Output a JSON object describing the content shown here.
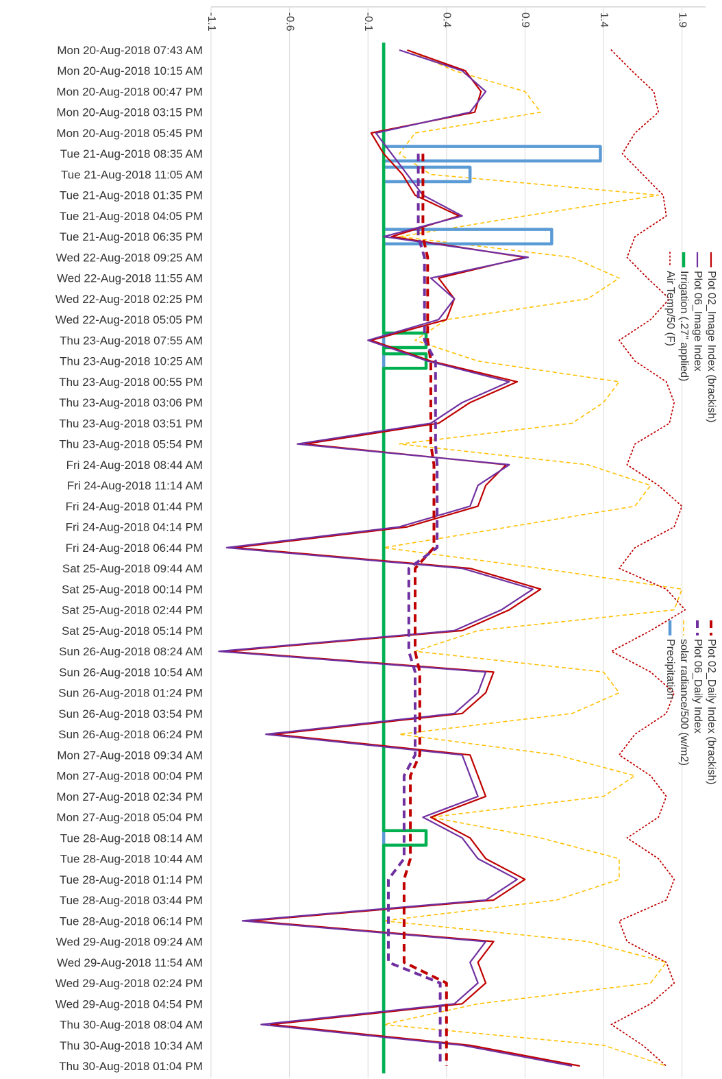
{
  "chart_data": {
    "type": "line",
    "title": "",
    "xlabel": "",
    "ylabel": "",
    "orientation": "rotated-90-clockwise",
    "value_axis": {
      "ticks": [
        -1.1,
        -0.6,
        -0.1,
        0.4,
        0.9,
        1.4,
        1.9
      ],
      "tick_labels": [
        "-1.1",
        "-0.6",
        "-0.1",
        "0.4",
        "0.9",
        "1.4",
        "1.9"
      ],
      "range": [
        -1.1,
        2.05
      ],
      "gridlines": true
    },
    "categories": [
      "Mon 20-Aug-2018 07:43 AM",
      "Mon 20-Aug-2018 10:15 AM",
      "Mon 20-Aug-2018 00:47 PM",
      "Mon 20-Aug-2018 03:15 PM",
      "Mon 20-Aug-2018 05:45 PM",
      "Tue 21-Aug-2018 08:35 AM",
      "Tue 21-Aug-2018 11:05 AM",
      "Tue 21-Aug-2018 01:35 PM",
      "Tue 21-Aug-2018 04:05 PM",
      "Tue 21-Aug-2018 06:35 PM",
      "Wed 22-Aug-2018 09:25 AM",
      "Wed 22-Aug-2018 11:55 AM",
      "Wed 22-Aug-2018 02:25 PM",
      "Wed 22-Aug-2018 05:05 PM",
      "Thu 23-Aug-2018 07:55 AM",
      "Thu 23-Aug-2018 10:25 AM",
      "Thu 23-Aug-2018 00:55 PM",
      "Thu 23-Aug-2018 03:06 PM",
      "Thu 23-Aug-2018 03:51 PM",
      "Thu 23-Aug-2018 05:54 PM",
      "Fri 24-Aug-2018 08:44 AM",
      "Fri 24-Aug-2018 11:14 AM",
      "Fri 24-Aug-2018 01:44 PM",
      "Fri 24-Aug-2018 04:14 PM",
      "Fri 24-Aug-2018 06:44 PM",
      "Sat 25-Aug-2018 09:44 AM",
      "Sat 25-Aug-2018 00:14 PM",
      "Sat 25-Aug-2018 02:44 PM",
      "Sat 25-Aug-2018 05:14 PM",
      "Sun 26-Aug-2018 08:24 AM",
      "Sun 26-Aug-2018 10:54 AM",
      "Sun 26-Aug-2018 01:24 PM",
      "Sun 26-Aug-2018 03:54 PM",
      "Sun 26-Aug-2018 06:24 PM",
      "Mon 27-Aug-2018 09:34 AM",
      "Mon 27-Aug-2018 00:04 PM",
      "Mon 27-Aug-2018 02:34 PM",
      "Mon 27-Aug-2018 05:04 PM",
      "Tue 28-Aug-2018 08:14 AM",
      "Tue 28-Aug-2018 10:44 AM",
      "Tue 28-Aug-2018 01:14 PM",
      "Tue 28-Aug-2018 03:44 PM",
      "Tue 28-Aug-2018 06:14 PM",
      "Wed 29-Aug-2018 09:24 AM",
      "Wed 29-Aug-2018 11:54 AM",
      "Wed 29-Aug-2018 02:24 PM",
      "Wed 29-Aug-2018 04:54 PM",
      "Thu 30-Aug-2018 08:04 AM",
      "Thu 30-Aug-2018 10:34 AM",
      "Thu 30-Aug-2018 01:04 PM"
    ],
    "legend": {
      "placement": "upper-right",
      "entries": [
        {
          "label": "Plot 02_Image Index (brackish)",
          "series": "p02"
        },
        {
          "label": "Plot 06_Image Index",
          "series": "p06"
        },
        {
          "label": "Irrigation (.27\" applied)",
          "series": "irr"
        },
        {
          "label": "Air Temp/50  (F)",
          "series": "air"
        },
        {
          "label": "Plot 02_Daily Index (brackish)",
          "series": "p02d"
        },
        {
          "label": "Plot 06_Daily Index",
          "series": "p06d"
        },
        {
          "label": "solar radiance/500  (w/m2)",
          "series": "sol"
        },
        {
          "label": "Precipitation",
          "series": "pre"
        }
      ]
    },
    "series": [
      {
        "name": "Plot 02_Image Index (brackish)",
        "key": "p02",
        "color": "#c00000",
        "style": "solid",
        "values": [
          0.15,
          0.52,
          0.62,
          0.58,
          -0.08,
          0.0,
          0.12,
          0.2,
          0.48,
          0.05,
          0.9,
          0.35,
          0.45,
          0.4,
          -0.08,
          0.3,
          0.85,
          0.55,
          0.35,
          -0.5,
          0.78,
          0.65,
          0.6,
          0.15,
          -0.95,
          0.55,
          1.0,
          0.8,
          0.5,
          -1.0,
          0.7,
          0.65,
          0.5,
          -0.7,
          0.55,
          0.6,
          0.65,
          0.3,
          0.55,
          0.65,
          0.9,
          0.7,
          -0.85,
          0.7,
          0.6,
          0.65,
          0.5,
          -0.72,
          0.55,
          1.25
        ]
      },
      {
        "name": "Plot 06_Image Index",
        "key": "p06",
        "color": "#7030a0",
        "style": "solid",
        "values": [
          0.1,
          0.5,
          0.65,
          0.55,
          -0.05,
          0.05,
          0.15,
          0.25,
          0.5,
          0.0,
          0.92,
          0.3,
          0.45,
          0.35,
          -0.1,
          0.28,
          0.8,
          0.5,
          0.3,
          -0.55,
          0.8,
          0.6,
          0.55,
          0.1,
          -1.0,
          0.5,
          0.95,
          0.75,
          0.45,
          -1.05,
          0.65,
          0.6,
          0.45,
          -0.75,
          0.5,
          0.55,
          0.6,
          0.25,
          0.5,
          0.6,
          0.85,
          0.65,
          -0.9,
          0.65,
          0.55,
          0.6,
          0.45,
          -0.78,
          0.5,
          1.2
        ]
      },
      {
        "name": "Plot 02_Daily Index (brackish)",
        "key": "p02d",
        "color": "#c00000",
        "style": "dashed-thick",
        "values": [
          null,
          null,
          null,
          null,
          null,
          0.25,
          0.25,
          0.25,
          0.25,
          0.25,
          0.28,
          0.28,
          0.28,
          0.28,
          0.28,
          0.3,
          0.3,
          0.3,
          0.3,
          0.3,
          0.32,
          0.32,
          0.32,
          0.32,
          0.32,
          0.2,
          0.2,
          0.2,
          0.2,
          0.2,
          0.23,
          0.23,
          0.23,
          0.23,
          0.23,
          0.17,
          0.17,
          0.17,
          0.17,
          0.17,
          0.13,
          0.13,
          0.13,
          0.13,
          0.13,
          0.4,
          0.4,
          0.4,
          0.4,
          0.4
        ]
      },
      {
        "name": "Plot 06_Daily Index",
        "key": "p06d",
        "color": "#7030a0",
        "style": "dashed-thick",
        "values": [
          null,
          null,
          null,
          null,
          null,
          0.22,
          0.22,
          0.22,
          0.22,
          0.22,
          0.26,
          0.26,
          0.26,
          0.26,
          0.26,
          0.33,
          0.33,
          0.33,
          0.33,
          0.33,
          0.34,
          0.34,
          0.34,
          0.34,
          0.34,
          0.16,
          0.16,
          0.16,
          0.16,
          0.16,
          0.2,
          0.2,
          0.2,
          0.2,
          0.2,
          0.13,
          0.13,
          0.13,
          0.13,
          0.13,
          0.03,
          0.03,
          0.03,
          0.03,
          0.03,
          0.36,
          0.36,
          0.36,
          0.36,
          0.36
        ]
      },
      {
        "name": "solar radiance/500  (w/m2)",
        "key": "sol",
        "color": "#ffc000",
        "style": "dashed",
        "values": [
          0.15,
          0.45,
          0.9,
          1.0,
          0.2,
          0.1,
          0.3,
          1.75,
          0.9,
          0.1,
          1.2,
          1.5,
          1.3,
          0.4,
          0.2,
          0.6,
          1.5,
          1.4,
          1.2,
          0.1,
          1.3,
          1.7,
          1.6,
          0.8,
          0.0,
          1.0,
          1.9,
          1.85,
          0.6,
          0.2,
          1.4,
          1.5,
          1.2,
          0.1,
          1.1,
          1.6,
          1.4,
          0.3,
          1.0,
          1.5,
          1.5,
          1.1,
          0.0,
          1.3,
          1.8,
          1.7,
          0.6,
          0.0,
          1.4,
          1.8
        ]
      },
      {
        "name": "Air Temp/50  (F)",
        "key": "air",
        "color": "#c00000",
        "style": "dotted",
        "values": [
          1.45,
          1.58,
          1.72,
          1.75,
          1.6,
          1.52,
          1.65,
          1.78,
          1.8,
          1.6,
          1.55,
          1.68,
          1.82,
          1.7,
          1.5,
          1.6,
          1.8,
          1.85,
          1.82,
          1.6,
          1.55,
          1.75,
          1.9,
          1.85,
          1.6,
          1.5,
          1.8,
          1.92,
          1.7,
          1.45,
          1.7,
          1.85,
          1.8,
          1.6,
          1.5,
          1.7,
          1.8,
          1.75,
          1.55,
          1.75,
          1.85,
          1.8,
          1.5,
          1.55,
          1.8,
          1.85,
          1.7,
          1.45,
          1.65,
          1.8
        ]
      },
      {
        "name": "Precipitation",
        "key": "pre",
        "color": "#5b9bd5",
        "style": "solid-thick",
        "values": [
          0,
          0,
          0,
          0,
          0,
          1.38,
          0.55,
          0,
          0,
          1.07,
          0,
          0,
          0,
          0,
          0,
          0,
          0,
          0,
          0,
          0,
          0,
          0,
          0,
          0,
          0,
          0,
          0,
          0,
          0,
          0,
          0,
          0,
          0,
          0,
          0,
          0,
          0,
          0,
          0,
          0,
          0,
          0,
          0,
          0,
          0,
          0,
          0,
          0,
          0,
          0
        ]
      },
      {
        "name": "Irrigation (.27\" applied)",
        "key": "irr",
        "color": "#00b050",
        "style": "solid-thick",
        "values": [
          0,
          0,
          0,
          0,
          0,
          0,
          0,
          0,
          0,
          0,
          0,
          0,
          0,
          0,
          0.27,
          0.27,
          0,
          0,
          0,
          0,
          0,
          0,
          0,
          0,
          0,
          0,
          0,
          0,
          0,
          0,
          0,
          0,
          0,
          0,
          0,
          0,
          0,
          0,
          0.27,
          0,
          0,
          0,
          0,
          0,
          0,
          0,
          0,
          0,
          0,
          0
        ]
      }
    ]
  }
}
